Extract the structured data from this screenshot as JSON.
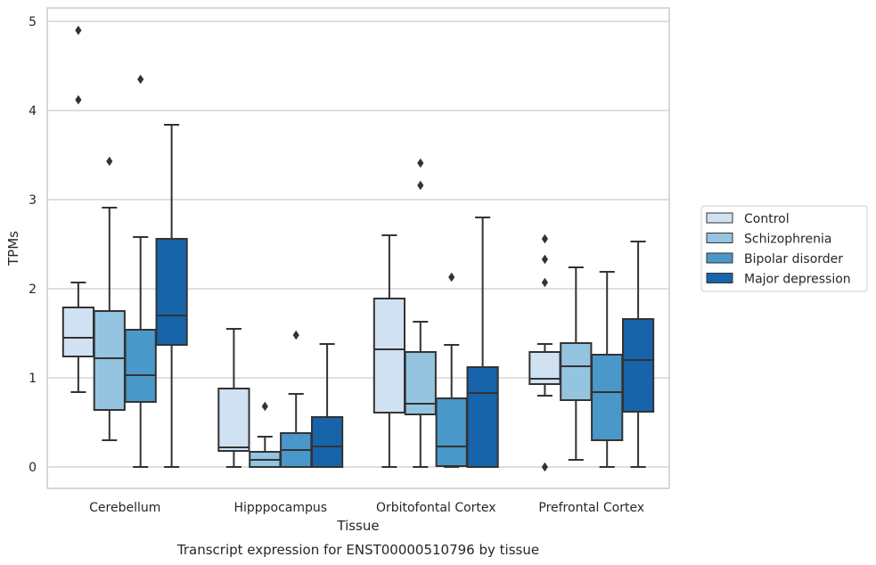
{
  "chart_data": {
    "type": "boxplot",
    "title": "",
    "caption": "Transcript expression for ENST00000510796 by tissue",
    "xlabel": "Tissue",
    "ylabel": "TPMs",
    "ylim": [
      -0.24,
      5.15
    ],
    "yticks": [
      0,
      1,
      2,
      3,
      4,
      5
    ],
    "grid": "horizontal",
    "legend_position": "right",
    "categories": [
      "Cerebellum",
      "Hipppocampus",
      "Orbitofontal Cortex",
      "Prefrontal Cortex"
    ],
    "series": [
      {
        "name": "Control",
        "color": "#d0e1f2",
        "boxes": [
          {
            "whisker_low": 0.84,
            "q1": 1.24,
            "median": 1.45,
            "q3": 1.79,
            "whisker_high": 2.07,
            "outliers": [
              4.12,
              4.9
            ]
          },
          {
            "whisker_low": 0.0,
            "q1": 0.18,
            "median": 0.22,
            "q3": 0.88,
            "whisker_high": 1.55,
            "outliers": []
          },
          {
            "whisker_low": 0.0,
            "q1": 0.61,
            "median": 1.32,
            "q3": 1.89,
            "whisker_high": 2.6,
            "outliers": []
          },
          {
            "whisker_low": 0.8,
            "q1": 0.93,
            "median": 0.99,
            "q3": 1.29,
            "whisker_high": 1.38,
            "outliers": [
              0.0,
              2.07,
              2.33,
              2.56
            ]
          }
        ]
      },
      {
        "name": "Schizophrenia",
        "color": "#94c4df",
        "boxes": [
          {
            "whisker_low": 0.3,
            "q1": 0.64,
            "median": 1.22,
            "q3": 1.75,
            "whisker_high": 2.91,
            "outliers": [
              3.43
            ]
          },
          {
            "whisker_low": 0.0,
            "q1": 0.0,
            "median": 0.08,
            "q3": 0.17,
            "whisker_high": 0.34,
            "outliers": [
              0.68
            ]
          },
          {
            "whisker_low": 0.0,
            "q1": 0.59,
            "median": 0.71,
            "q3": 1.29,
            "whisker_high": 1.63,
            "outliers": [
              3.16,
              3.41
            ]
          },
          {
            "whisker_low": 0.08,
            "q1": 0.75,
            "median": 1.13,
            "q3": 1.39,
            "whisker_high": 2.24,
            "outliers": []
          }
        ]
      },
      {
        "name": "Bipolar disorder",
        "color": "#4a98c9",
        "boxes": [
          {
            "whisker_low": 0.0,
            "q1": 0.73,
            "median": 1.03,
            "q3": 1.54,
            "whisker_high": 2.58,
            "outliers": [
              4.35
            ]
          },
          {
            "whisker_low": 0.0,
            "q1": 0.0,
            "median": 0.19,
            "q3": 0.38,
            "whisker_high": 0.82,
            "outliers": [
              1.48
            ]
          },
          {
            "whisker_low": 0.0,
            "q1": 0.01,
            "median": 0.23,
            "q3": 0.77,
            "whisker_high": 1.37,
            "outliers": [
              2.13
            ]
          },
          {
            "whisker_low": 0.0,
            "q1": 0.3,
            "median": 0.84,
            "q3": 1.26,
            "whisker_high": 2.19,
            "outliers": []
          }
        ]
      },
      {
        "name": "Major depression",
        "color": "#1764ab",
        "boxes": [
          {
            "whisker_low": 0.0,
            "q1": 1.37,
            "median": 1.7,
            "q3": 2.56,
            "whisker_high": 3.84,
            "outliers": []
          },
          {
            "whisker_low": 0.0,
            "q1": 0.0,
            "median": 0.23,
            "q3": 0.56,
            "whisker_high": 1.38,
            "outliers": []
          },
          {
            "whisker_low": 0.0,
            "q1": 0.0,
            "median": 0.83,
            "q3": 1.12,
            "whisker_high": 2.8,
            "outliers": []
          },
          {
            "whisker_low": 0.0,
            "q1": 0.62,
            "median": 1.2,
            "q3": 1.66,
            "whisker_high": 2.53,
            "outliers": []
          }
        ]
      }
    ]
  },
  "style": {
    "grid_color": "#cccccc",
    "frame_color": "#cccccc",
    "line_color": "#333333",
    "text_color": "#262626",
    "background": "#ffffff"
  }
}
